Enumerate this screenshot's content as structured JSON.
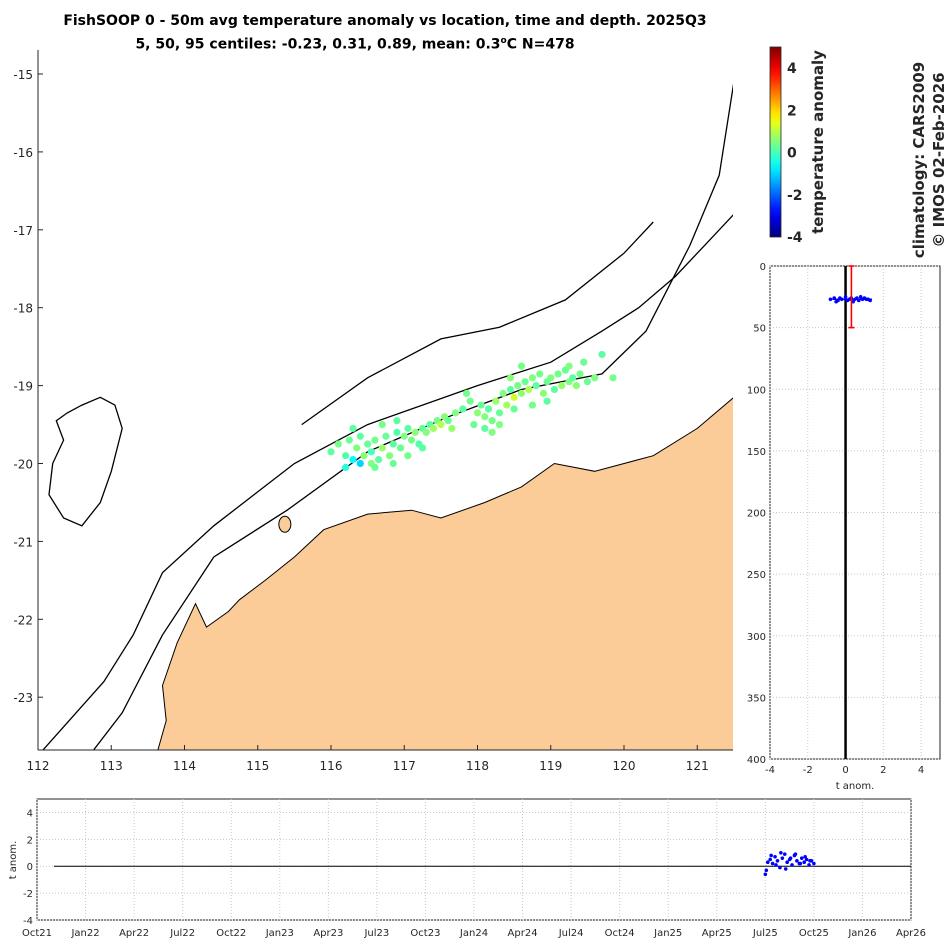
{
  "title": "FishSOOP 0 - 50m avg temperature anomaly vs location, time and depth. 2025Q3",
  "subtitle": {
    "prefix": "5, 50, 95 centiles: -0.23, 0.31, 0.89, mean: 0.3",
    "degree_sup": "o",
    "suffix": "C N=478"
  },
  "credits": {
    "climatology": "climatology: CARS2009",
    "copyright": "© IMOS 02-Feb-2026"
  },
  "colors": {
    "land": "#fbcb98",
    "coastline": "#000000",
    "isobath": "#000000",
    "profile_points": "#0000ff",
    "profile_errorbar": "#ff0000",
    "timeseries_points": "#0000ff",
    "grid": "#c8c8c8"
  },
  "chart_data": [
    {
      "id": "map",
      "type": "scatter",
      "xlim": [
        112,
        121.5
      ],
      "ylim": [
        -23.8,
        -14.8
      ],
      "x_ticks": [
        "112",
        "113",
        "114",
        "115",
        "116",
        "117",
        "118",
        "119",
        "120",
        "121"
      ],
      "y_ticks": [
        "-15",
        "-16",
        "-17",
        "-18",
        "-19",
        "-20",
        "-21",
        "-22",
        "-23"
      ],
      "grid": false,
      "color_by": "temperature anomaly",
      "points": [
        [
          116.0,
          -19.85,
          0.2
        ],
        [
          116.1,
          -19.75,
          0.4
        ],
        [
          116.2,
          -19.9,
          0.1
        ],
        [
          116.25,
          -19.7,
          0.3
        ],
        [
          116.3,
          -19.95,
          -0.6
        ],
        [
          116.35,
          -19.8,
          0.5
        ],
        [
          116.4,
          -19.65,
          0.2
        ],
        [
          116.45,
          -19.9,
          0.6
        ],
        [
          116.5,
          -19.75,
          0.3
        ],
        [
          116.55,
          -19.85,
          0.0
        ],
        [
          116.6,
          -19.7,
          0.4
        ],
        [
          116.65,
          -19.95,
          0.2
        ],
        [
          116.7,
          -19.8,
          0.7
        ],
        [
          116.75,
          -19.65,
          0.3
        ],
        [
          116.8,
          -19.9,
          0.5
        ],
        [
          116.85,
          -19.75,
          0.2
        ],
        [
          116.9,
          -19.6,
          0.1
        ],
        [
          116.4,
          -20.0,
          -1.0
        ],
        [
          116.2,
          -20.05,
          -0.3
        ],
        [
          116.6,
          -20.05,
          0.3
        ],
        [
          116.3,
          -19.55,
          0.2
        ],
        [
          116.7,
          -19.5,
          0.4
        ],
        [
          116.95,
          -19.8,
          0.3
        ],
        [
          117.0,
          -19.65,
          0.5
        ],
        [
          117.05,
          -19.55,
          0.2
        ],
        [
          117.1,
          -19.7,
          0.4
        ],
        [
          117.15,
          -19.6,
          0.6
        ],
        [
          117.2,
          -19.75,
          0.1
        ],
        [
          117.25,
          -19.55,
          0.3
        ],
        [
          117.3,
          -19.6,
          0.5
        ],
        [
          117.35,
          -19.5,
          0.2
        ],
        [
          117.4,
          -19.55,
          0.8
        ],
        [
          117.45,
          -19.45,
          0.4
        ],
        [
          117.5,
          -19.5,
          1.0
        ],
        [
          117.55,
          -19.4,
          0.6
        ],
        [
          117.6,
          -19.45,
          0.3
        ],
        [
          117.7,
          -19.35,
          0.5
        ],
        [
          117.8,
          -19.3,
          0.2
        ],
        [
          117.9,
          -19.2,
          0.4
        ],
        [
          118.0,
          -19.35,
          0.6
        ],
        [
          118.05,
          -19.25,
          0.3
        ],
        [
          118.1,
          -19.4,
          0.5
        ],
        [
          118.15,
          -19.3,
          0.2
        ],
        [
          118.2,
          -19.45,
          0.4
        ],
        [
          118.25,
          -19.2,
          0.7
        ],
        [
          118.3,
          -19.35,
          0.3
        ],
        [
          118.35,
          -19.1,
          0.5
        ],
        [
          118.4,
          -19.25,
          0.8
        ],
        [
          118.45,
          -19.05,
          0.2
        ],
        [
          118.5,
          -19.15,
          1.2
        ],
        [
          118.55,
          -19.0,
          0.4
        ],
        [
          118.6,
          -19.1,
          0.6
        ],
        [
          118.65,
          -18.95,
          0.3
        ],
        [
          118.7,
          -19.05,
          0.9
        ],
        [
          118.75,
          -18.9,
          0.5
        ],
        [
          118.8,
          -19.0,
          0.2
        ],
        [
          118.85,
          -18.85,
          0.4
        ],
        [
          118.9,
          -19.1,
          0.6
        ],
        [
          118.95,
          -18.95,
          0.3
        ],
        [
          119.0,
          -18.9,
          0.5
        ],
        [
          119.05,
          -19.05,
          0.2
        ],
        [
          119.1,
          -18.85,
          0.4
        ],
        [
          119.15,
          -19.0,
          0.7
        ],
        [
          119.2,
          -18.8,
          0.3
        ],
        [
          119.25,
          -18.95,
          0.5
        ],
        [
          119.3,
          -18.9,
          0.2
        ],
        [
          119.35,
          -19.0,
          0.6
        ],
        [
          119.4,
          -18.85,
          0.4
        ],
        [
          119.5,
          -18.95,
          0.3
        ],
        [
          119.6,
          -18.9,
          0.5
        ],
        [
          119.7,
          -18.6,
          0.2
        ],
        [
          119.85,
          -18.9,
          0.4
        ],
        [
          119.45,
          -18.7,
          0.3
        ],
        [
          119.25,
          -18.75,
          0.5
        ],
        [
          118.95,
          -19.2,
          0.2
        ],
        [
          118.75,
          -19.25,
          0.4
        ],
        [
          118.5,
          -19.3,
          0.3
        ],
        [
          118.3,
          -19.5,
          0.5
        ],
        [
          118.1,
          -19.55,
          0.2
        ],
        [
          117.85,
          -19.1,
          0.4
        ],
        [
          117.95,
          -19.5,
          0.3
        ],
        [
          118.2,
          -19.6,
          0.5
        ],
        [
          117.65,
          -19.55,
          0.7
        ],
        [
          117.25,
          -19.8,
          0.2
        ],
        [
          117.05,
          -19.9,
          0.4
        ],
        [
          116.85,
          -20.0,
          0.3
        ],
        [
          116.55,
          -20.0,
          0.5
        ],
        [
          116.9,
          -19.45,
          0.2
        ],
        [
          118.6,
          -18.75,
          0.4
        ],
        [
          118.45,
          -18.9,
          0.6
        ]
      ],
      "isobaths": [
        [
          [
            112.0,
            -23.75
          ],
          [
            112.9,
            -22.8
          ],
          [
            113.3,
            -22.2
          ],
          [
            113.7,
            -21.4
          ],
          [
            114.4,
            -20.8
          ],
          [
            115.5,
            -20.0
          ],
          [
            116.5,
            -19.5
          ],
          [
            118.0,
            -19.0
          ],
          [
            119.0,
            -18.7
          ],
          [
            119.7,
            -18.3
          ],
          [
            120.2,
            -18.0
          ],
          [
            120.7,
            -17.6
          ],
          [
            121.1,
            -17.2
          ],
          [
            121.5,
            -16.8
          ]
        ],
        [
          [
            112.7,
            -23.75
          ],
          [
            113.15,
            -23.2
          ],
          [
            113.7,
            -22.2
          ],
          [
            114.4,
            -21.2
          ],
          [
            115.4,
            -20.6
          ],
          [
            116.5,
            -19.85
          ],
          [
            117.6,
            -19.4
          ],
          [
            118.6,
            -19.05
          ],
          [
            119.7,
            -18.85
          ],
          [
            120.3,
            -18.3
          ],
          [
            120.9,
            -17.2
          ],
          [
            121.3,
            -16.3
          ],
          [
            121.5,
            -15.1
          ]
        ],
        [
          [
            115.6,
            -19.5
          ],
          [
            116.5,
            -18.9
          ],
          [
            117.5,
            -18.4
          ],
          [
            118.3,
            -18.25
          ],
          [
            119.2,
            -17.9
          ],
          [
            120.0,
            -17.3
          ],
          [
            120.4,
            -16.9
          ]
        ]
      ],
      "island": [
        [
          112.2,
          -20.0
        ],
        [
          112.35,
          -19.7
        ],
        [
          112.25,
          -19.45
        ],
        [
          112.4,
          -19.35
        ],
        [
          112.6,
          -19.25
        ],
        [
          112.85,
          -19.15
        ],
        [
          113.05,
          -19.25
        ],
        [
          113.15,
          -19.55
        ],
        [
          113.0,
          -20.1
        ],
        [
          112.85,
          -20.5
        ],
        [
          112.6,
          -20.8
        ],
        [
          112.35,
          -20.7
        ],
        [
          112.15,
          -20.4
        ]
      ],
      "land": [
        [
          113.6,
          -23.8
        ],
        [
          113.75,
          -23.3
        ],
        [
          113.7,
          -22.85
        ],
        [
          113.9,
          -22.3
        ],
        [
          114.15,
          -21.8
        ],
        [
          114.3,
          -22.1
        ],
        [
          114.6,
          -21.9
        ],
        [
          114.75,
          -21.75
        ],
        [
          115.1,
          -21.5
        ],
        [
          115.5,
          -21.2
        ],
        [
          115.9,
          -20.85
        ],
        [
          116.5,
          -20.65
        ],
        [
          117.1,
          -20.6
        ],
        [
          117.5,
          -20.7
        ],
        [
          118.1,
          -20.5
        ],
        [
          118.6,
          -20.3
        ],
        [
          119.05,
          -20.0
        ],
        [
          119.6,
          -20.1
        ],
        [
          120.4,
          -19.9
        ],
        [
          121.0,
          -19.55
        ],
        [
          121.5,
          -19.15
        ],
        [
          121.5,
          -23.8
        ]
      ]
    },
    {
      "id": "colorbar",
      "type": "heatmap",
      "label": "temperature anomaly",
      "range": [
        -4,
        5
      ],
      "ticks": [
        "4",
        "2",
        "0",
        "-2",
        "-4"
      ]
    },
    {
      "id": "depth_profile",
      "type": "scatter",
      "xlabel": "t anom.",
      "xlim": [
        -4,
        5
      ],
      "ylim": [
        400,
        0
      ],
      "x_ticks": [
        "-4",
        "-2",
        "0",
        "2",
        "4"
      ],
      "y_ticks": [
        "0",
        "50",
        "100",
        "150",
        "200",
        "250",
        "300",
        "350",
        "400"
      ],
      "grid": true,
      "points_x": [
        -0.8,
        -0.6,
        -0.4,
        -0.3,
        -0.2,
        0.0,
        0.1,
        0.2,
        0.3,
        0.4,
        0.5,
        0.6,
        0.7,
        0.9,
        1.0,
        1.2,
        1.3,
        -0.5,
        0.8,
        1.1
      ],
      "points_depth": [
        27,
        26,
        28,
        26,
        27,
        25,
        28,
        27,
        26,
        29,
        27,
        26,
        28,
        27,
        26,
        27,
        28,
        29,
        25,
        27
      ],
      "errorbar": {
        "x": 0.31,
        "depth_min": 0,
        "depth_max": 50
      },
      "zero_line": 0
    },
    {
      "id": "time_series",
      "type": "scatter",
      "ylabel": "t anom.",
      "ylim": [
        -4,
        5
      ],
      "y_ticks": [
        "4",
        "2",
        "0",
        "-2",
        "-4"
      ],
      "x_ticks": [
        "Oct21",
        "Jan22",
        "Apr22",
        "Jul22",
        "Oct22",
        "Jan23",
        "Apr23",
        "Jul23",
        "Oct23",
        "Jan24",
        "Apr24",
        "Jul24",
        "Oct24",
        "Jan25",
        "Apr25",
        "Jul25",
        "Oct25",
        "Jan26",
        "Apr26"
      ],
      "grid": true,
      "points_t": [
        15.0,
        15.05,
        15.1,
        15.15,
        15.2,
        15.25,
        15.3,
        15.35,
        15.4,
        15.45,
        15.5,
        15.55,
        15.6,
        15.65,
        15.7,
        15.75,
        15.8,
        15.85,
        15.9,
        15.95,
        16.0,
        15.02,
        15.12,
        15.22,
        15.32,
        15.42,
        15.52,
        15.62,
        15.72,
        15.82,
        15.92
      ],
      "points_y": [
        -0.6,
        0.3,
        0.5,
        0.2,
        0.7,
        0.4,
        -0.1,
        0.6,
        0.9,
        0.3,
        0.5,
        0.1,
        0.8,
        0.4,
        0.2,
        0.6,
        0.3,
        0.5,
        0.1,
        0.4,
        0.2,
        -0.3,
        0.8,
        0.1,
        1.0,
        -0.2,
        0.6,
        0.9,
        0.2,
        0.7,
        0.4
      ]
    }
  ]
}
